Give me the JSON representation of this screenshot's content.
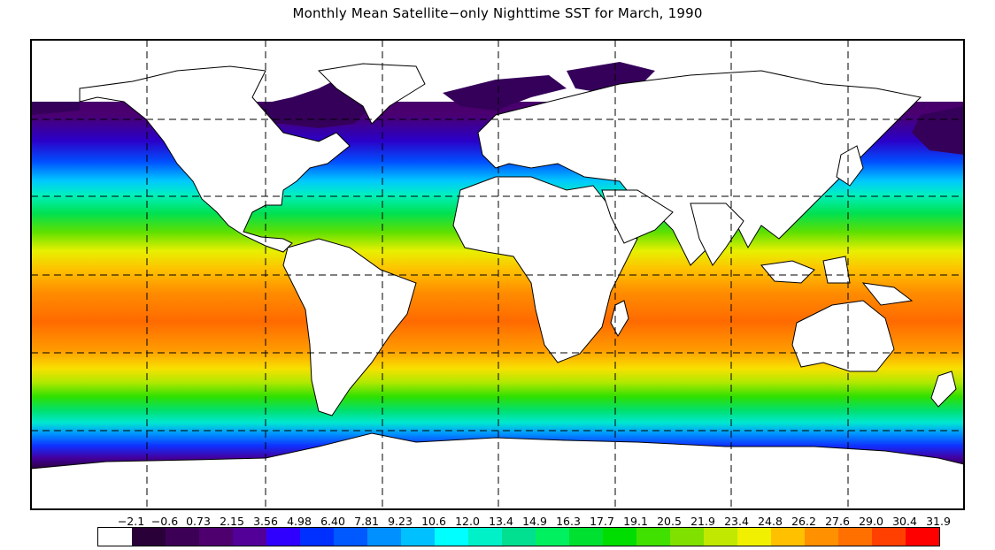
{
  "title": "Monthly Mean Satellite−only Nighttime SST for March, 1990",
  "legend": {
    "labels": [
      "−2.1",
      "−0.6",
      "0.73",
      "2.15",
      "3.56",
      "4.98",
      "6.40",
      "7.81",
      "9.23",
      "10.6",
      "12.0",
      "13.4",
      "14.9",
      "16.3",
      "17.7",
      "19.1",
      "20.5",
      "21.9",
      "23.4",
      "24.8",
      "26.2",
      "27.6",
      "29.0",
      "30.4",
      "31.9"
    ],
    "colors": [
      "#ffffff",
      "#2a0038",
      "#3d0057",
      "#4e006e",
      "#520098",
      "#3000ff",
      "#0030ff",
      "#0058ff",
      "#0090ff",
      "#00c0ff",
      "#00ffff",
      "#00f0c8",
      "#00e090",
      "#00f060",
      "#00e030",
      "#00dd00",
      "#40e000",
      "#80e000",
      "#c0e800",
      "#f0f000",
      "#ffc000",
      "#ff9000",
      "#ff7000",
      "#ff4000",
      "#ff0000"
    ]
  },
  "map": {
    "projection": "equirectangular",
    "grid_lon": [
      -150,
      -105,
      -60,
      -15,
      30,
      75,
      120,
      165
    ],
    "grid_lat": [
      60,
      30,
      0,
      -30
    ],
    "land_color": "#ffffff",
    "ice_color": "#35005a"
  }
}
